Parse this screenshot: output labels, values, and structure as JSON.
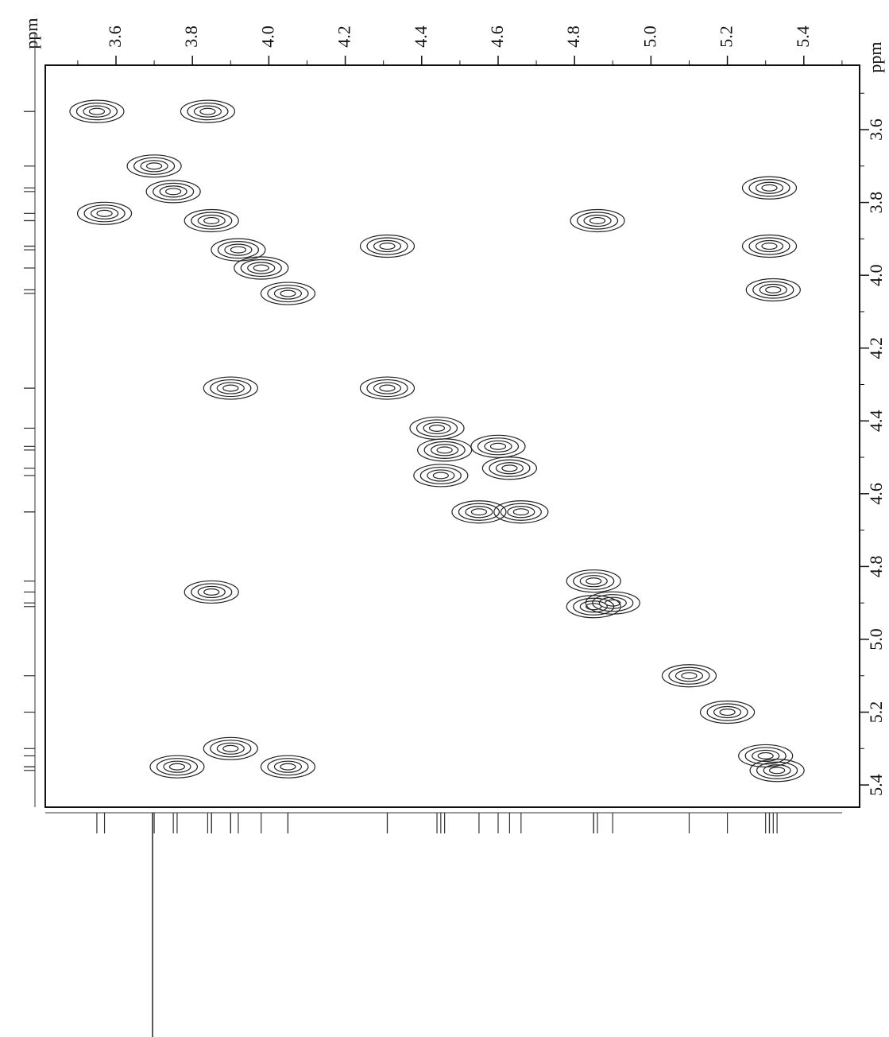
{
  "chart_data": {
    "type": "contour",
    "x_label": "ppm",
    "y_label": "ppm",
    "xlim": [
      3.415,
      5.546
    ],
    "ylim": [
      3.423,
      5.461
    ],
    "xticks": [
      {
        "value": 3.6,
        "label": "3.6"
      },
      {
        "value": 3.8,
        "label": "3.8"
      },
      {
        "value": 4.0,
        "label": "4.0"
      },
      {
        "value": 4.2,
        "label": "4.2"
      },
      {
        "value": 4.4,
        "label": "4.4"
      },
      {
        "value": 4.6,
        "label": "4.6"
      },
      {
        "value": 4.8,
        "label": "4.8"
      },
      {
        "value": 5.0,
        "label": "5.0"
      },
      {
        "value": 5.2,
        "label": "5.2"
      },
      {
        "value": 5.4,
        "label": "5.4"
      }
    ],
    "yticks": [
      {
        "value": 3.6,
        "label": "3.6"
      },
      {
        "value": 3.8,
        "label": "3.8"
      },
      {
        "value": 4.0,
        "label": "4.0"
      },
      {
        "value": 4.2,
        "label": "4.2"
      },
      {
        "value": 4.4,
        "label": "4.4"
      },
      {
        "value": 4.6,
        "label": "4.6"
      },
      {
        "value": 4.8,
        "label": "4.8"
      },
      {
        "value": 5.0,
        "label": "5.0"
      },
      {
        "value": 5.2,
        "label": "5.2"
      },
      {
        "value": 5.4,
        "label": "5.4"
      }
    ],
    "xminorticks": [
      3.5,
      3.7,
      3.9,
      4.1,
      4.3,
      4.5,
      4.7,
      4.9,
      5.1,
      5.3,
      5.5
    ],
    "yminorticks": [
      3.5,
      3.7,
      3.9,
      4.1,
      4.3,
      4.5,
      4.7,
      4.9,
      5.1,
      5.3
    ],
    "color": "#222222",
    "peaks": {
      "x": [
        3.55,
        3.7,
        3.75,
        3.85,
        3.92,
        3.98,
        4.05,
        4.31,
        4.44,
        4.46,
        4.45,
        4.6,
        4.63,
        4.55,
        4.66,
        4.85,
        4.9,
        4.85,
        5.1,
        5.2,
        5.3,
        5.33,
        3.84,
        3.57,
        4.86,
        5.31,
        5.31,
        5.32,
        3.9,
        3.85,
        3.76,
        3.9,
        4.05,
        4.31
      ],
      "y": [
        3.55,
        3.7,
        3.77,
        3.85,
        3.93,
        3.98,
        4.05,
        4.31,
        4.42,
        4.48,
        4.55,
        4.47,
        4.53,
        4.65,
        4.65,
        4.84,
        4.9,
        4.91,
        5.1,
        5.2,
        5.32,
        5.36,
        3.55,
        3.83,
        3.85,
        3.76,
        3.92,
        4.04,
        4.31,
        4.87,
        5.35,
        5.3,
        5.35,
        3.92
      ]
    }
  }
}
